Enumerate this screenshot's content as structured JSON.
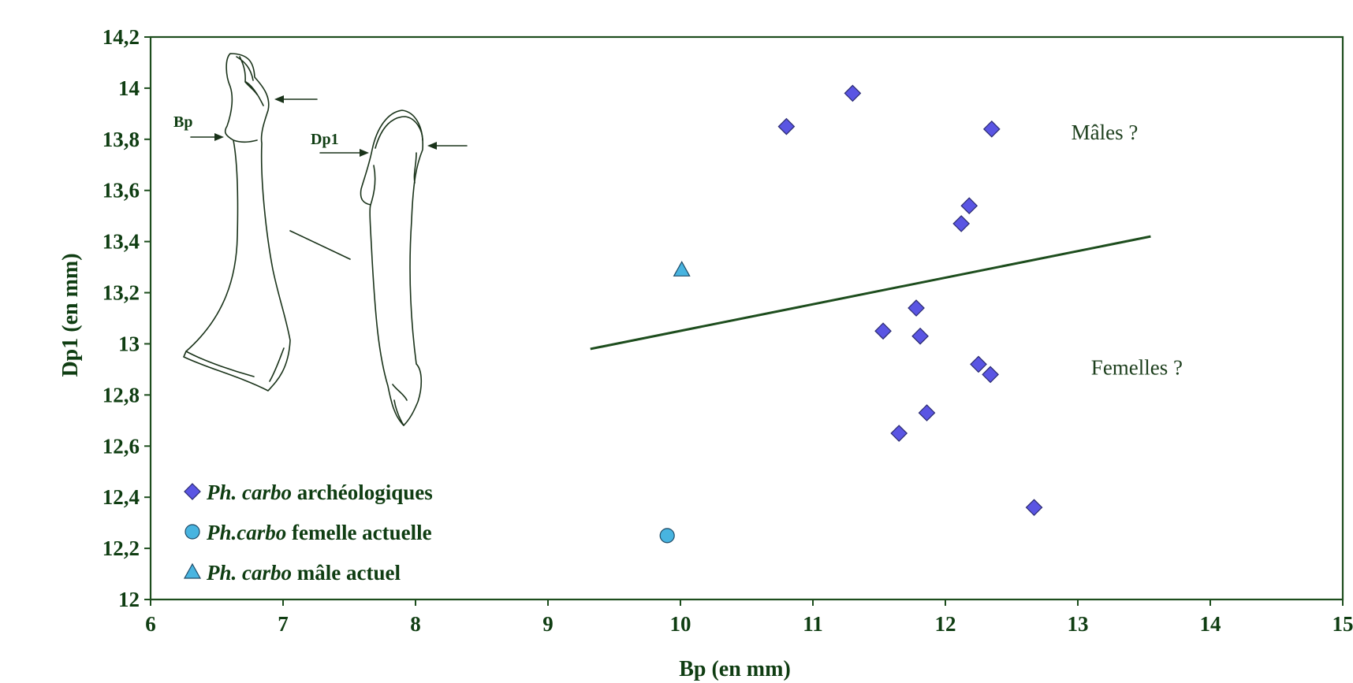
{
  "chart_data": {
    "type": "scatter",
    "xlabel": "Bp (en mm)",
    "ylabel": "Dp1 (en mm)",
    "xlim": [
      6,
      15
    ],
    "ylim": [
      12,
      14.2
    ],
    "xticks": [
      "6",
      "7",
      "8",
      "9",
      "10",
      "11",
      "12",
      "13",
      "14",
      "15"
    ],
    "yticks": [
      "12",
      "12,2",
      "12,4",
      "12,6",
      "12,8",
      "13",
      "13,2",
      "13,4",
      "13,6",
      "13,8",
      "14",
      "14,2"
    ],
    "grid": false,
    "legend_position": "bottom-left",
    "series": [
      {
        "name": "Ph. carbo archéologiques",
        "name_italic": "Ph. carbo",
        "name_rest": " archéologiques",
        "marker": "diamond",
        "color": "#5a55e3",
        "points": [
          [
            10.8,
            13.85
          ],
          [
            11.3,
            13.98
          ],
          [
            12.35,
            13.84
          ],
          [
            12.18,
            13.54
          ],
          [
            12.12,
            13.47
          ],
          [
            11.78,
            13.14
          ],
          [
            11.53,
            13.05
          ],
          [
            11.81,
            13.03
          ],
          [
            12.25,
            12.92
          ],
          [
            12.34,
            12.88
          ],
          [
            11.86,
            12.73
          ],
          [
            11.65,
            12.65
          ],
          [
            12.67,
            12.36
          ]
        ]
      },
      {
        "name": "Ph.carbo femelle actuelle",
        "name_italic": "Ph.carbo",
        "name_rest": " femelle actuelle",
        "marker": "circle",
        "color": "#48b4e0",
        "points": [
          [
            9.9,
            12.25
          ]
        ]
      },
      {
        "name": "Ph. carbo mâle actuel",
        "name_italic": "Ph. carbo",
        "name_rest": " mâle actuel",
        "marker": "triangle",
        "color": "#48b4e0",
        "points": [
          [
            10.01,
            13.29
          ]
        ]
      }
    ],
    "separator_line": {
      "x": [
        9.32,
        13.55
      ],
      "y": [
        12.98,
        13.42
      ],
      "color": "#1d4d1d"
    },
    "annotations": [
      {
        "text": "Mâles ?",
        "x": 12.95,
        "y": 13.8
      },
      {
        "text": "Femelles ?",
        "x": 13.1,
        "y": 12.88
      }
    ],
    "sketch_labels": {
      "left": "Bp",
      "right": "Dp1"
    },
    "colors": {
      "axis": "#1d4d1d",
      "text": "#0f3d12"
    }
  }
}
